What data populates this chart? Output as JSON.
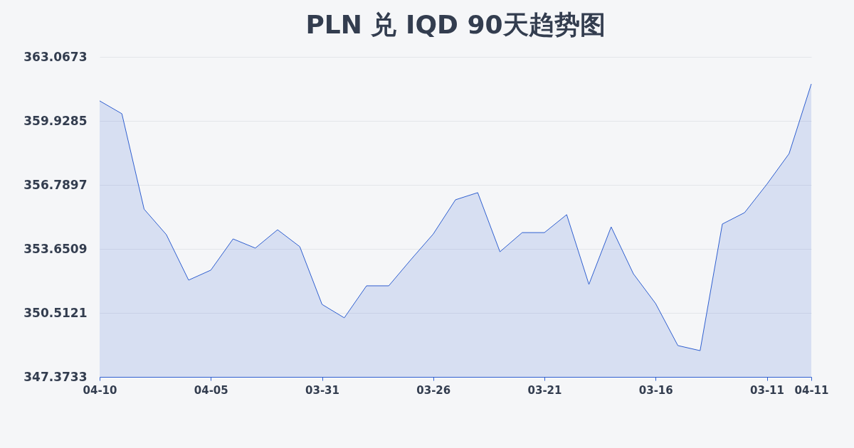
{
  "chart_data": {
    "type": "area",
    "title": "PLN 兑 IQD 90天趋势图",
    "categories": [
      "04-10",
      null,
      null,
      null,
      null,
      "04-05",
      null,
      null,
      null,
      null,
      "03-31",
      null,
      null,
      null,
      null,
      "03-26",
      null,
      null,
      null,
      null,
      "03-21",
      null,
      null,
      null,
      null,
      "03-16",
      null,
      null,
      null,
      null,
      "03-11",
      null,
      "04-11"
    ],
    "series": [
      {
        "color": "#2f5fd0",
        "values": [
          360.91,
          360.28,
          355.6,
          354.35,
          352.12,
          352.61,
          354.14,
          353.69,
          354.59,
          353.76,
          350.93,
          350.27,
          351.84,
          351.84,
          353.13,
          354.38,
          356.06,
          356.41,
          353.51,
          354.45,
          354.45,
          355.33,
          351.91,
          354.73,
          352.43,
          350.97,
          348.91,
          348.66,
          354.87,
          355.43,
          356.82,
          358.32,
          361.74
        ]
      }
    ],
    "ylim": [
      347.3733,
      363.0673
    ],
    "yticks": [
      347.3733,
      350.5121,
      353.6509,
      356.7897,
      359.9285,
      363.0673
    ],
    "grid": "y"
  }
}
